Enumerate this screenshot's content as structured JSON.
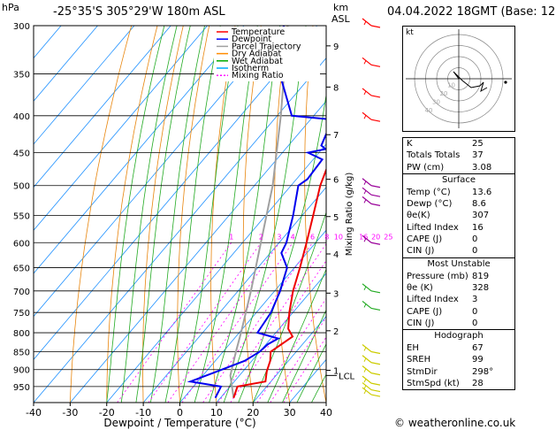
{
  "header": {
    "pressure_unit": "hPa",
    "location": "-25°35'S  305°29'W  180m  ASL",
    "km_label": "km",
    "asl_label": "ASL",
    "datetime": "04.04.2022  18GMT  (Base: 12)"
  },
  "footer": {
    "credit": "© weatheronline.co.uk"
  },
  "chart_data": {
    "type": "line",
    "subtype": "skew-T log-p diagram",
    "xlabel": "Dewpoint / Temperature (°C)",
    "ylabel_right": "Mixing Ratio (g/kg)",
    "xlim": [
      -40,
      40
    ],
    "ylim_hpa": [
      300,
      1000
    ],
    "x_ticks": [
      "-40",
      "-30",
      "-20",
      "-10",
      "0",
      "10",
      "20",
      "30",
      "40"
    ],
    "pressure_levels": [
      300,
      350,
      400,
      450,
      500,
      550,
      600,
      650,
      700,
      750,
      800,
      850,
      900,
      950
    ],
    "km_ticks": [
      {
        "label": "9",
        "p": 320
      },
      {
        "label": "8",
        "p": 365
      },
      {
        "label": "7",
        "p": 425
      },
      {
        "label": "6",
        "p": 490
      },
      {
        "label": "5",
        "p": 552
      },
      {
        "label": "4",
        "p": 622
      },
      {
        "label": "3",
        "p": 705
      },
      {
        "label": "2",
        "p": 795
      },
      {
        "label": "1",
        "p": 902
      }
    ],
    "lcl": {
      "label": "LCL",
      "p": 917
    },
    "mixing_ratio_labels": [
      "1",
      "2",
      "3",
      "4",
      "6",
      "8",
      "10",
      "16",
      "20",
      "25"
    ],
    "mixing_ratio_values": [
      1,
      2,
      3,
      4,
      6,
      8,
      10,
      16,
      20,
      25
    ],
    "legend": [
      {
        "name": "Temperature",
        "color": "#ff0000"
      },
      {
        "name": "Dewpoint",
        "color": "#0000ff"
      },
      {
        "name": "Parcel Trajectory",
        "color": "#a0a0a0"
      },
      {
        "name": "Dry Adiabat",
        "color": "#ff8c00"
      },
      {
        "name": "Wet Adiabat",
        "color": "#00aa00"
      },
      {
        "name": "Isotherm",
        "color": "#00aaff"
      },
      {
        "name": "Mixing Ratio",
        "color": "#ff00ff"
      }
    ],
    "temperature": [
      {
        "p": 985,
        "t": 13.6
      },
      {
        "p": 950,
        "t": 12.0
      },
      {
        "p": 935,
        "t": 18.5
      },
      {
        "p": 905,
        "t": 16.5
      },
      {
        "p": 875,
        "t": 15.0
      },
      {
        "p": 850,
        "t": 13.0
      },
      {
        "p": 810,
        "t": 15.5
      },
      {
        "p": 790,
        "t": 12.5
      },
      {
        "p": 750,
        "t": 9.0
      },
      {
        "p": 700,
        "t": 5.0
      },
      {
        "p": 650,
        "t": 1.5
      },
      {
        "p": 600,
        "t": -2.5
      },
      {
        "p": 550,
        "t": -7.0
      },
      {
        "p": 500,
        "t": -12.0
      },
      {
        "p": 470,
        "t": -14.5
      },
      {
        "p": 450,
        "t": -17.0
      },
      {
        "p": 420,
        "t": -21.5
      },
      {
        "p": 400,
        "t": -25.0
      },
      {
        "p": 350,
        "t": -34.0
      },
      {
        "p": 300,
        "t": -43.0
      }
    ],
    "dewpoint": [
      {
        "p": 985,
        "t": 8.6
      },
      {
        "p": 950,
        "t": 7.5
      },
      {
        "p": 935,
        "t": -2.0
      },
      {
        "p": 905,
        "t": 3.0
      },
      {
        "p": 875,
        "t": 8.0
      },
      {
        "p": 850,
        "t": 10.0
      },
      {
        "p": 830,
        "t": 10.5
      },
      {
        "p": 815,
        "t": 12.0
      },
      {
        "p": 800,
        "t": 5.0
      },
      {
        "p": 750,
        "t": 4.0
      },
      {
        "p": 700,
        "t": 1.5
      },
      {
        "p": 650,
        "t": -2.0
      },
      {
        "p": 620,
        "t": -7.0
      },
      {
        "p": 600,
        "t": -8.0
      },
      {
        "p": 550,
        "t": -12.5
      },
      {
        "p": 500,
        "t": -18.0
      },
      {
        "p": 490,
        "t": -17.0
      },
      {
        "p": 460,
        "t": -17.5
      },
      {
        "p": 450,
        "t": -23.0
      },
      {
        "p": 445,
        "t": -19.0
      },
      {
        "p": 440,
        "t": -21.0
      },
      {
        "p": 405,
        "t": -24.0
      },
      {
        "p": 400,
        "t": -36.0
      },
      {
        "p": 350,
        "t": -49.0
      },
      {
        "p": 320,
        "t": -58.0
      },
      {
        "p": 300,
        "t": -59.0
      }
    ],
    "parcel": [
      {
        "p": 985,
        "t": 13.6
      },
      {
        "p": 917,
        "t": 7.5
      },
      {
        "p": 850,
        "t": 3.5
      },
      {
        "p": 800,
        "t": 0.5
      },
      {
        "p": 700,
        "t": -6.5
      },
      {
        "p": 600,
        "t": -15.0
      },
      {
        "p": 500,
        "t": -25.0
      },
      {
        "p": 400,
        "t": -39.0
      },
      {
        "p": 300,
        "t": -58.0
      }
    ],
    "hodograph": {
      "label": "kt",
      "rings_kt": [
        10,
        20,
        30,
        40
      ],
      "ring_labels": [
        "10",
        "20",
        "30",
        "40"
      ]
    },
    "indices": {
      "general": [
        {
          "label": "K",
          "value": "25"
        },
        {
          "label": "Totals Totals",
          "value": "37"
        },
        {
          "label": "PW (cm)",
          "value": "3.08"
        }
      ],
      "surface": {
        "title": "Surface",
        "rows": [
          {
            "label": "Temp (°C)",
            "value": "13.6"
          },
          {
            "label": "Dewp (°C)",
            "value": "8.6"
          },
          {
            "label": "θe(K)",
            "value": "307"
          },
          {
            "label": "Lifted Index",
            "value": "16"
          },
          {
            "label": "CAPE (J)",
            "value": "0"
          },
          {
            "label": "CIN (J)",
            "value": "0"
          }
        ]
      },
      "most_unstable": {
        "title": "Most Unstable",
        "rows": [
          {
            "label": "Pressure (mb)",
            "value": "819"
          },
          {
            "label": "θe (K)",
            "value": "328"
          },
          {
            "label": "Lifted Index",
            "value": "3"
          },
          {
            "label": "CAPE (J)",
            "value": "0"
          },
          {
            "label": "CIN (J)",
            "value": "0"
          }
        ]
      },
      "hodograph": {
        "title": "Hodograph",
        "rows": [
          {
            "label": "EH",
            "value": "67"
          },
          {
            "label": "SREH",
            "value": "99"
          },
          {
            "label": "StmDir",
            "value": "298°"
          },
          {
            "label": "StmSpd (kt)",
            "value": "28"
          }
        ]
      }
    }
  }
}
